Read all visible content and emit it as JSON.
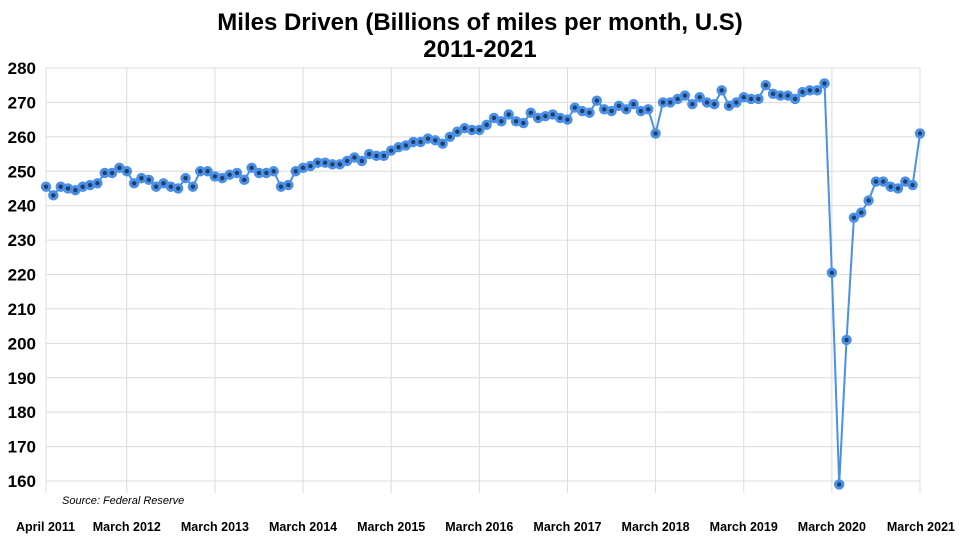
{
  "chart_data": {
    "type": "line",
    "title": "Miles Driven (Billions of miles per month, U.S)",
    "subtitle": "2011-2021",
    "xlabel": "",
    "ylabel": "",
    "ylim": [
      160,
      280
    ],
    "yticks": [
      160,
      170,
      180,
      190,
      200,
      210,
      220,
      230,
      240,
      250,
      260,
      270,
      280
    ],
    "grid": true,
    "source": "Source: Federal Reserve",
    "x_start": "April 2011",
    "x_end": "March 2021",
    "xtick_labels": [
      {
        "label": "April 2011",
        "index": 0
      },
      {
        "label": "March 2012",
        "index": 11
      },
      {
        "label": "March 2013",
        "index": 23
      },
      {
        "label": "March 2014",
        "index": 35
      },
      {
        "label": "March 2015",
        "index": 47
      },
      {
        "label": "March 2016",
        "index": 59
      },
      {
        "label": "March 2017",
        "index": 71
      },
      {
        "label": "March 2018",
        "index": 83
      },
      {
        "label": "March 2019",
        "index": 95
      },
      {
        "label": "March 2020",
        "index": 107
      },
      {
        "label": "March 2021",
        "index": 119
      }
    ],
    "series": [
      {
        "name": "Miles Driven",
        "color": "#4a90e8",
        "marker_color": "#1f3f66",
        "values": [
          245.5,
          243,
          245.5,
          245,
          244.5,
          245.5,
          246,
          246.5,
          249.5,
          249.5,
          251,
          250,
          246.5,
          248,
          247.5,
          245.5,
          246.5,
          245.5,
          245,
          248,
          245.5,
          250,
          250,
          248.5,
          248,
          249,
          249.5,
          247.5,
          251,
          249.5,
          249.5,
          250,
          245.5,
          246,
          250,
          251,
          251.5,
          252.5,
          252.5,
          252,
          252,
          253,
          254,
          253,
          255,
          254.5,
          254.5,
          256,
          257,
          257.5,
          258.5,
          258.5,
          259.5,
          259,
          258,
          260,
          261.5,
          262.5,
          262,
          262,
          263.5,
          265.5,
          264.5,
          266.5,
          264.5,
          264,
          267,
          265.5,
          266,
          266.5,
          265.5,
          265,
          268.5,
          267.5,
          267,
          270.5,
          268,
          267.5,
          269,
          268,
          269.5,
          267.5,
          268,
          261,
          270,
          270,
          271,
          272,
          269.5,
          271.5,
          270,
          269.5,
          273.5,
          269,
          270,
          271.5,
          271,
          271,
          275,
          272.5,
          272,
          272,
          271,
          273,
          273.5,
          273.5,
          275.5,
          220.5,
          159,
          201,
          236.5,
          238,
          241.5,
          247,
          247,
          245.5,
          245,
          247,
          246,
          261
        ]
      }
    ]
  }
}
